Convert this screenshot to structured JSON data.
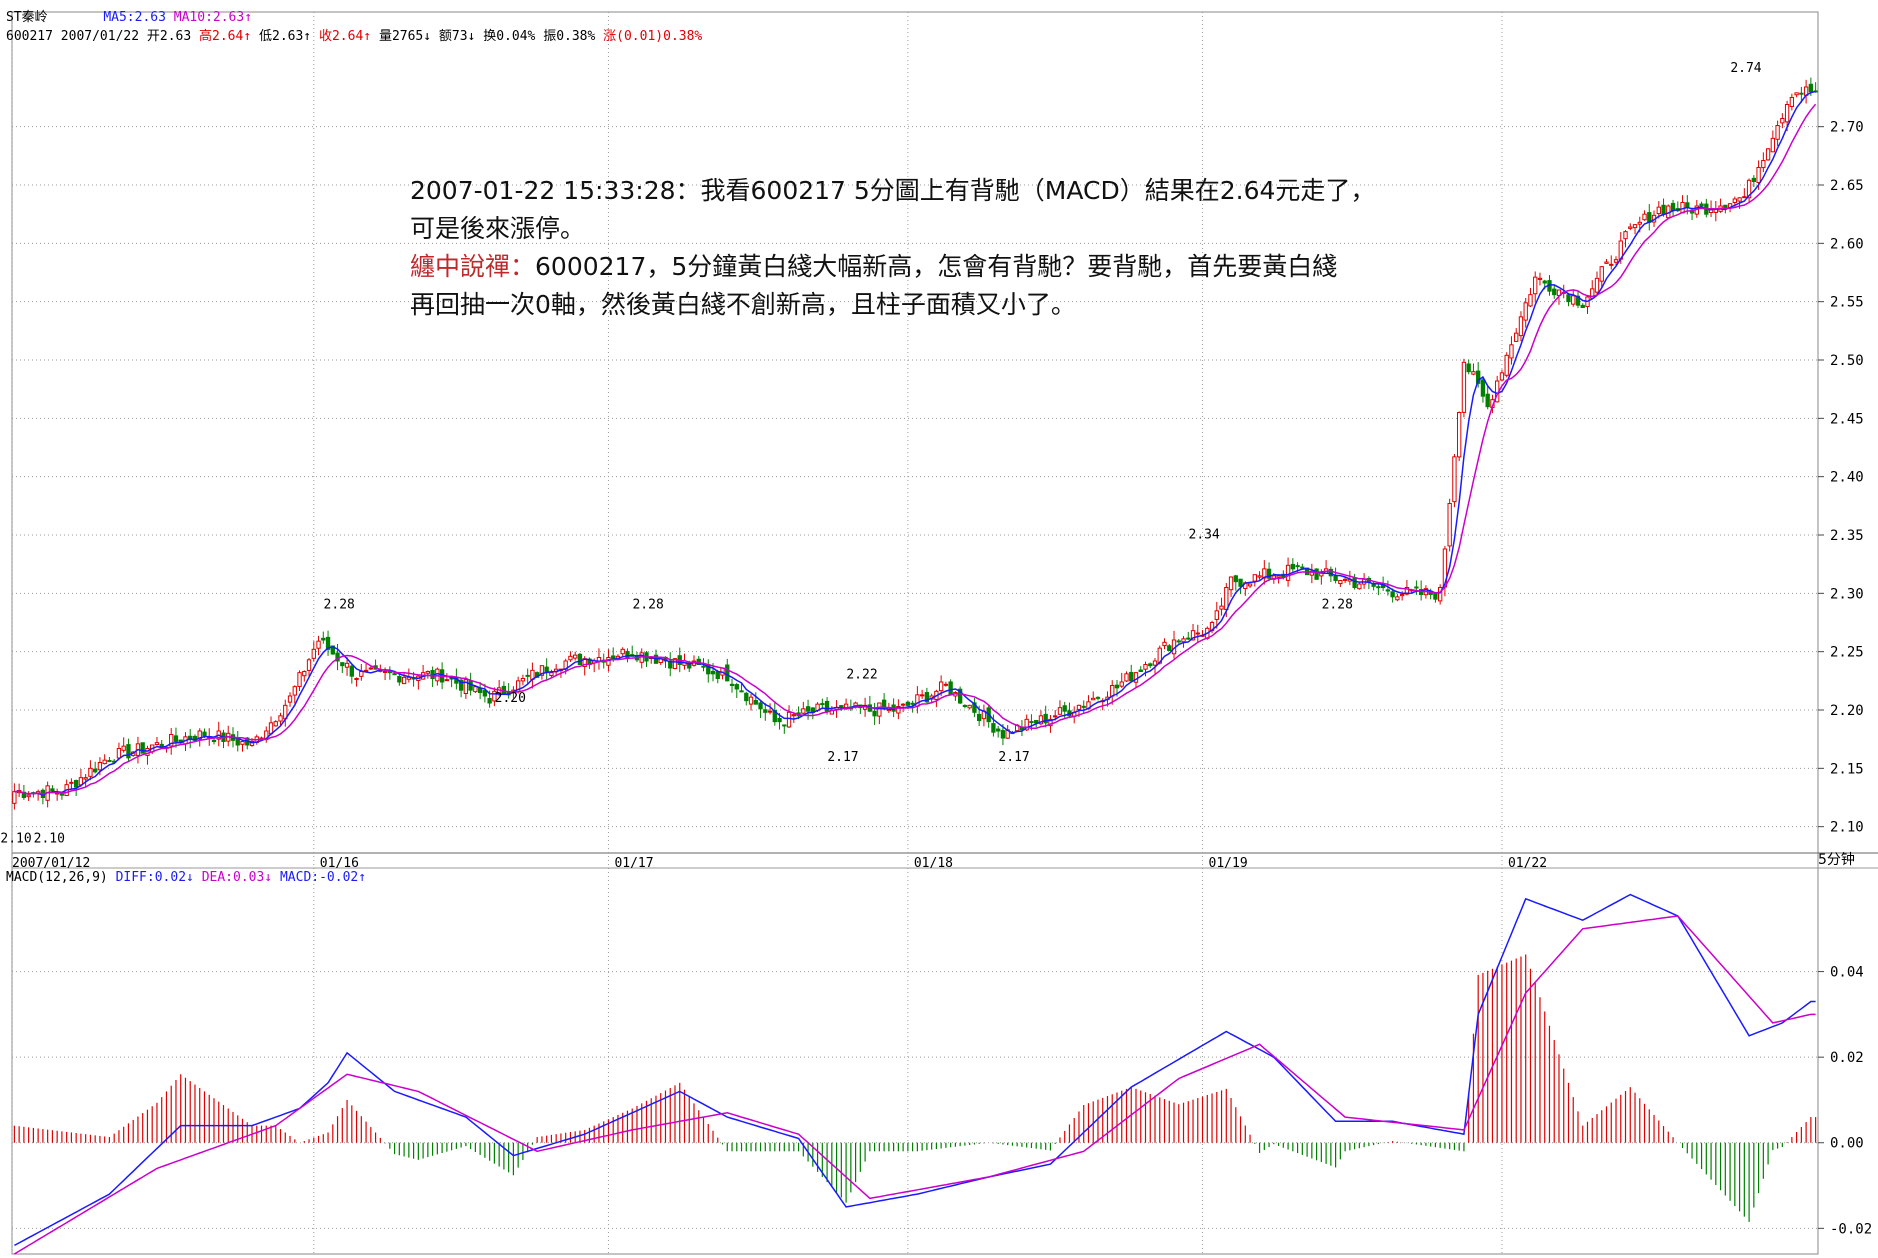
{
  "header": {
    "stock_name": "ST秦岭",
    "ma5": "MA5:2.63",
    "ma10": "MA10:2.63↑",
    "code_date": "600217 2007/01/22",
    "open": "开2.63",
    "high": "高2.64↑",
    "low": "低2.63↑",
    "close": "收2.64↑",
    "volume": "量2765↓",
    "amount": "额73↓",
    "turnover": "换0.04%",
    "amplitude": "振0.38%",
    "change": "涨(0.01)0.38%",
    "period": "5分钟"
  },
  "macd_header": {
    "name": "MACD(12,26,9)",
    "diff": "DIFF:0.02↓",
    "dea": "DEA:0.03↓",
    "macd": "MACD:-0.02↑"
  },
  "annotation": {
    "line1": "2007-01-22 15:33:28：我看600217 5分圖上有背馳（MACD）結果在2.64元走了，",
    "line2": "可是後來漲停。",
    "line3_label": "纏中說禪：",
    "line3_text": "6000217，5分鐘黃白綫大幅新高，怎會有背馳？要背馳，首先要黃白綫",
    "line4": "再回抽一次0軸，然後黃白綫不創新高，且柱子面積又小了。"
  },
  "colors": {
    "up": "#e00000",
    "down": "#008000",
    "ma5": "#1a1aff",
    "ma10": "#cc00cc",
    "diff": "#1a1aff",
    "dea": "#cc00cc",
    "grid": "#9a9a9a"
  },
  "chart_data": [
    {
      "type": "candlestick",
      "ylim": [
        2.08,
        2.77
      ],
      "yticks": [
        2.1,
        2.15,
        2.2,
        2.25,
        2.3,
        2.35,
        2.4,
        2.45,
        2.5,
        2.55,
        2.6,
        2.65,
        2.7
      ],
      "x_labels": [
        "2007/01/12",
        "01/16",
        "01/17",
        "01/18",
        "01/19",
        "01/22"
      ],
      "bars_per_day": 48,
      "close_path": [
        [
          0,
          2.13
        ],
        [
          10,
          2.13
        ],
        [
          20,
          2.16
        ],
        [
          40,
          2.18
        ],
        [
          50,
          2.17
        ],
        [
          58,
          2.21
        ],
        [
          64,
          2.26
        ],
        [
          72,
          2.23
        ],
        [
          90,
          2.23
        ],
        [
          100,
          2.21
        ],
        [
          114,
          2.24
        ],
        [
          130,
          2.25
        ],
        [
          140,
          2.24
        ],
        [
          150,
          2.23
        ],
        [
          160,
          2.19
        ],
        [
          170,
          2.2
        ],
        [
          186,
          2.2
        ],
        [
          196,
          2.22
        ],
        [
          208,
          2.18
        ],
        [
          222,
          2.2
        ],
        [
          232,
          2.22
        ],
        [
          244,
          2.26
        ],
        [
          252,
          2.27
        ],
        [
          256,
          2.31
        ],
        [
          270,
          2.32
        ],
        [
          282,
          2.31
        ],
        [
          292,
          2.3
        ],
        [
          300,
          2.3
        ],
        [
          301,
          2.34
        ],
        [
          305,
          2.5
        ],
        [
          310,
          2.46
        ],
        [
          320,
          2.57
        ],
        [
          330,
          2.55
        ],
        [
          340,
          2.61
        ],
        [
          346,
          2.63
        ],
        [
          355,
          2.63
        ],
        [
          364,
          2.64
        ],
        [
          374,
          2.73
        ]
      ],
      "labels": [
        {
          "value": "2.10",
          "bar": 0,
          "price": 2.1
        },
        {
          "value": "2.10",
          "bar": 7,
          "price": 2.1
        },
        {
          "value": "2.28",
          "bar": 68,
          "price": 2.28
        },
        {
          "value": "2.20",
          "bar": 104,
          "price": 2.2
        },
        {
          "value": "2.28",
          "bar": 133,
          "price": 2.28
        },
        {
          "value": "2.22",
          "bar": 178,
          "price": 2.22
        },
        {
          "value": "2.17",
          "bar": 174,
          "price": 2.17
        },
        {
          "value": "2.17",
          "bar": 210,
          "price": 2.17
        },
        {
          "value": "2.34",
          "bar": 250,
          "price": 2.34
        },
        {
          "value": "2.28",
          "bar": 278,
          "price": 2.28
        },
        {
          "value": "2.74",
          "bar": 364,
          "price": 2.74
        }
      ]
    },
    {
      "type": "macd",
      "ylim": [
        -0.026,
        0.06
      ],
      "yticks": [
        -0.02,
        0.0,
        0.02,
        0.04
      ],
      "diff_path": [
        [
          0,
          -0.024
        ],
        [
          20,
          -0.012
        ],
        [
          35,
          0.004
        ],
        [
          50,
          0.004
        ],
        [
          60,
          0.008
        ],
        [
          66,
          0.014
        ],
        [
          70,
          0.021
        ],
        [
          80,
          0.012
        ],
        [
          95,
          0.006
        ],
        [
          105,
          -0.003
        ],
        [
          120,
          0.002
        ],
        [
          140,
          0.012
        ],
        [
          150,
          0.006
        ],
        [
          165,
          0.001
        ],
        [
          175,
          -0.015
        ],
        [
          190,
          -0.012
        ],
        [
          205,
          -0.008
        ],
        [
          218,
          -0.005
        ],
        [
          235,
          0.013
        ],
        [
          255,
          0.026
        ],
        [
          265,
          0.02
        ],
        [
          278,
          0.005
        ],
        [
          290,
          0.005
        ],
        [
          305,
          0.002
        ],
        [
          308,
          0.03
        ],
        [
          318,
          0.057
        ],
        [
          330,
          0.052
        ],
        [
          340,
          0.058
        ],
        [
          350,
          0.053
        ],
        [
          365,
          0.025
        ],
        [
          372,
          0.028
        ],
        [
          378,
          0.033
        ]
      ],
      "dea_path": [
        [
          0,
          -0.026
        ],
        [
          30,
          -0.006
        ],
        [
          55,
          0.004
        ],
        [
          70,
          0.016
        ],
        [
          85,
          0.012
        ],
        [
          110,
          -0.002
        ],
        [
          130,
          0.003
        ],
        [
          150,
          0.007
        ],
        [
          165,
          0.002
        ],
        [
          180,
          -0.013
        ],
        [
          205,
          -0.008
        ],
        [
          225,
          -0.002
        ],
        [
          245,
          0.015
        ],
        [
          262,
          0.023
        ],
        [
          280,
          0.006
        ],
        [
          305,
          0.003
        ],
        [
          318,
          0.035
        ],
        [
          330,
          0.05
        ],
        [
          350,
          0.053
        ],
        [
          370,
          0.028
        ],
        [
          378,
          0.03
        ]
      ]
    }
  ]
}
